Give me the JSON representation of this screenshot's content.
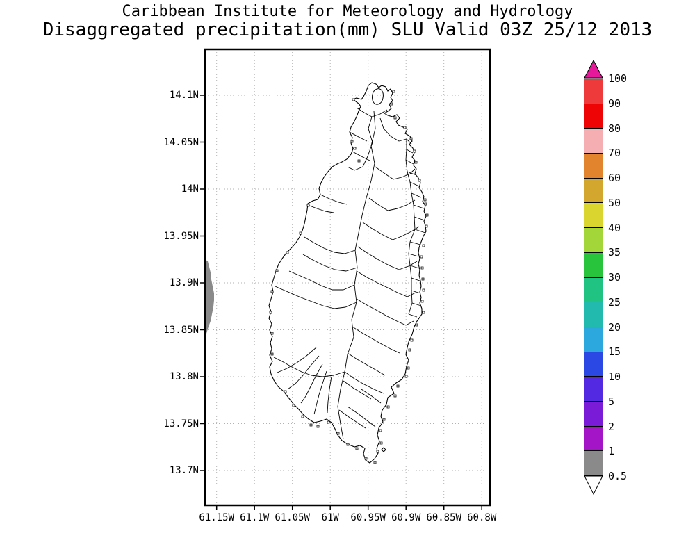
{
  "title": {
    "line1": "Caribbean Institute for Meteorology and Hydrology",
    "line2": "Disaggregated precipitation(mm) SLU Valid 03Z 25/12 2013"
  },
  "map": {
    "y_axis": {
      "ticks": [
        "14.1N",
        "14.05N",
        "14N",
        "13.95N",
        "13.9N",
        "13.85N",
        "13.8N",
        "13.75N",
        "13.7N"
      ]
    },
    "x_axis": {
      "ticks": [
        "61.15W",
        "61.1W",
        "61.05W",
        "61W",
        "60.95W",
        "60.9W",
        "60.85W",
        "60.8W"
      ]
    }
  },
  "colorbar": {
    "labels": [
      "100",
      "90",
      "80",
      "70",
      "60",
      "50",
      "40",
      "35",
      "30",
      "25",
      "20",
      "15",
      "10",
      "5",
      "2",
      "1",
      "0.5"
    ],
    "segment_colors": [
      "#EE3A3A",
      "#EE0404",
      "#F5AEB2",
      "#E2832E",
      "#D3A62E",
      "#DBD52F",
      "#A3D739",
      "#27C43C",
      "#20C381",
      "#22BAAF",
      "#2CA8DE",
      "#2B47E4",
      "#5429E2",
      "#7A1BD7",
      "#A315C7",
      "#8A8A8A"
    ],
    "over_color": "#E8189B",
    "under_color": "#FFFFFF",
    "outline_color": "#000000"
  }
}
